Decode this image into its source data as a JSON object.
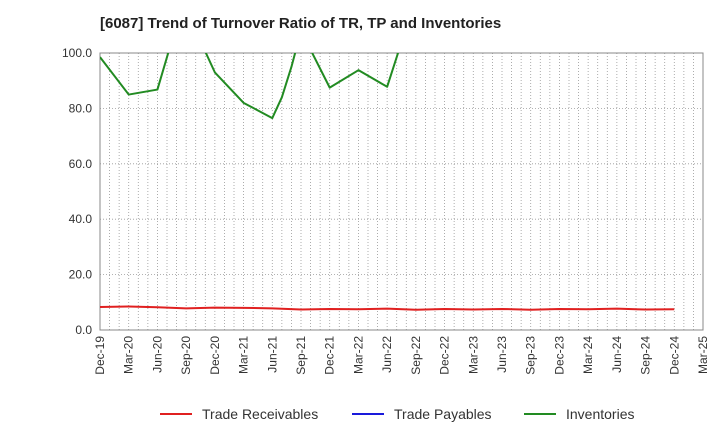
{
  "chart_data": {
    "type": "line",
    "title": "[6087]  Trend of Turnover Ratio of TR, TP and Inventories",
    "xlabel": "",
    "ylabel": "",
    "ylim": [
      0,
      100
    ],
    "yticks": [
      "0.0",
      "20.0",
      "40.0",
      "60.0",
      "80.0",
      "100.0"
    ],
    "grid": true,
    "legend_position": "bottom",
    "x": [
      "Dec-19",
      "Jan-20",
      "Feb-20",
      "Mar-20",
      "Apr-20",
      "May-20",
      "Jun-20",
      "Jul-20",
      "Aug-20",
      "Sep-20",
      "Oct-20",
      "Nov-20",
      "Dec-20",
      "Jan-21",
      "Feb-21",
      "Mar-21",
      "Apr-21",
      "May-21",
      "Jun-21",
      "Jul-21",
      "Aug-21",
      "Sep-21",
      "Oct-21",
      "Nov-21",
      "Dec-21",
      "Jan-22",
      "Feb-22",
      "Mar-22",
      "Apr-22",
      "May-22",
      "Jun-22",
      "Jul-22",
      "Aug-22",
      "Sep-22",
      "Oct-22",
      "Nov-22",
      "Dec-22",
      "Jan-23",
      "Feb-23",
      "Mar-23",
      "Apr-23",
      "May-23",
      "Jun-23",
      "Jul-23",
      "Aug-23",
      "Sep-23",
      "Oct-23",
      "Nov-23",
      "Dec-23",
      "Jan-24",
      "Feb-24",
      "Mar-24",
      "Apr-24",
      "May-24",
      "Jun-24",
      "Jul-24",
      "Aug-24",
      "Sep-24",
      "Oct-24",
      "Nov-24",
      "Dec-24",
      "Jan-25",
      "Feb-25",
      "Mar-25"
    ],
    "x_tick_labels": [
      "Dec-19",
      "Mar-20",
      "Jun-20",
      "Sep-20",
      "Dec-20",
      "Mar-21",
      "Jun-21",
      "Sep-21",
      "Dec-21",
      "Mar-22",
      "Jun-22",
      "Sep-22",
      "Dec-22",
      "Mar-23",
      "Jun-23",
      "Sep-23",
      "Dec-23",
      "Mar-24",
      "Jun-24",
      "Sep-24",
      "Dec-24",
      "Mar-25"
    ],
    "series": [
      {
        "name": "Trade Receivables",
        "color": "#e02020",
        "points": [
          [
            "Dec-19",
            8.3
          ],
          [
            "Mar-20",
            8.5
          ],
          [
            "Jun-20",
            8.2
          ],
          [
            "Sep-20",
            7.8
          ],
          [
            "Dec-20",
            8.1
          ],
          [
            "Mar-21",
            8.0
          ],
          [
            "Jun-21",
            7.8
          ],
          [
            "Sep-21",
            7.4
          ],
          [
            "Dec-21",
            7.6
          ],
          [
            "Mar-22",
            7.5
          ],
          [
            "Jun-22",
            7.7
          ],
          [
            "Sep-22",
            7.3
          ],
          [
            "Dec-22",
            7.6
          ],
          [
            "Mar-23",
            7.4
          ],
          [
            "Jun-23",
            7.6
          ],
          [
            "Sep-23",
            7.3
          ],
          [
            "Dec-23",
            7.6
          ],
          [
            "Mar-24",
            7.5
          ],
          [
            "Jun-24",
            7.7
          ],
          [
            "Sep-24",
            7.4
          ],
          [
            "Dec-24",
            7.5
          ]
        ]
      },
      {
        "name": "Trade Payables",
        "color": "#1a1adb",
        "points": []
      },
      {
        "name": "Inventories",
        "color": "#228b22",
        "points": [
          [
            "Dec-19",
            98.5
          ],
          [
            "Mar-20",
            85.0
          ],
          [
            "Jun-20",
            86.8
          ],
          [
            "Sep-20",
            122.0
          ],
          [
            "Oct-20",
            108.0
          ],
          [
            "Dec-20",
            93.0
          ],
          [
            "Mar-21",
            82.0
          ],
          [
            "Jun-21",
            76.5
          ],
          [
            "Jul-21",
            84.0
          ],
          [
            "Aug-21",
            95.0
          ],
          [
            "Sep-21",
            108.0
          ],
          [
            "Dec-21",
            87.5
          ],
          [
            "Mar-22",
            93.8
          ],
          [
            "Jun-22",
            87.8
          ],
          [
            "Sep-22",
            120.0
          ]
        ]
      }
    ]
  }
}
